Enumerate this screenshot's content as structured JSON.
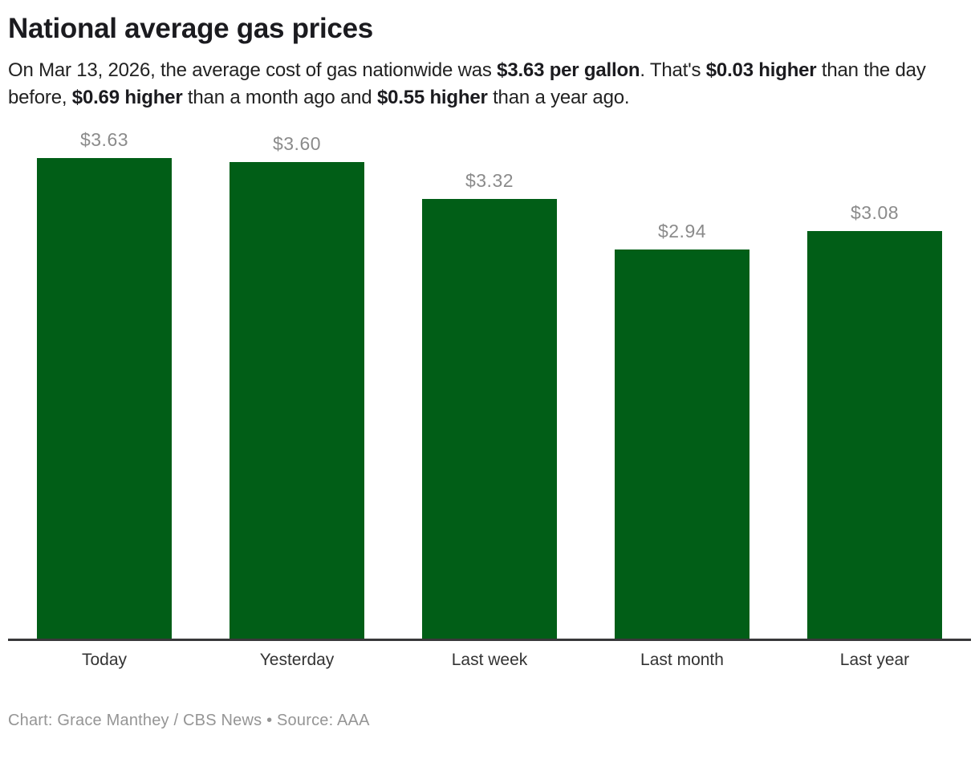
{
  "header": {
    "title": "National average gas prices",
    "subtitle_segments": [
      {
        "text": "On Mar 13, 2026, the average cost of gas nationwide was ",
        "bold": false
      },
      {
        "text": "$3.63 per gallon",
        "bold": true
      },
      {
        "text": ". That's ",
        "bold": false
      },
      {
        "text": "$0.03 higher",
        "bold": true
      },
      {
        "text": " than the day before, ",
        "bold": false
      },
      {
        "text": "$0.69 higher",
        "bold": true
      },
      {
        "text": " than a month ago and ",
        "bold": false
      },
      {
        "text": "$0.55 higher",
        "bold": true
      },
      {
        "text": " than a year ago.",
        "bold": false
      }
    ]
  },
  "chart_data": {
    "type": "bar",
    "title": "National average gas prices",
    "categories": [
      "Today",
      "Yesterday",
      "Last week",
      "Last month",
      "Last year"
    ],
    "values": [
      3.63,
      3.6,
      3.32,
      2.94,
      3.08
    ],
    "value_labels": [
      "$3.63",
      "$3.60",
      "$3.32",
      "$2.94",
      "$3.08"
    ],
    "xlabel": "",
    "ylabel": "",
    "ylim": [
      0,
      3.9
    ],
    "grid": false,
    "legend": "none",
    "bar_color": "#015e17",
    "value_label_color": "#8b8b8b",
    "axis_label_color": "#333333",
    "baseline_color": "#38383a"
  },
  "footer": {
    "credit": "Chart: Grace Manthey / CBS News • Source: AAA"
  }
}
